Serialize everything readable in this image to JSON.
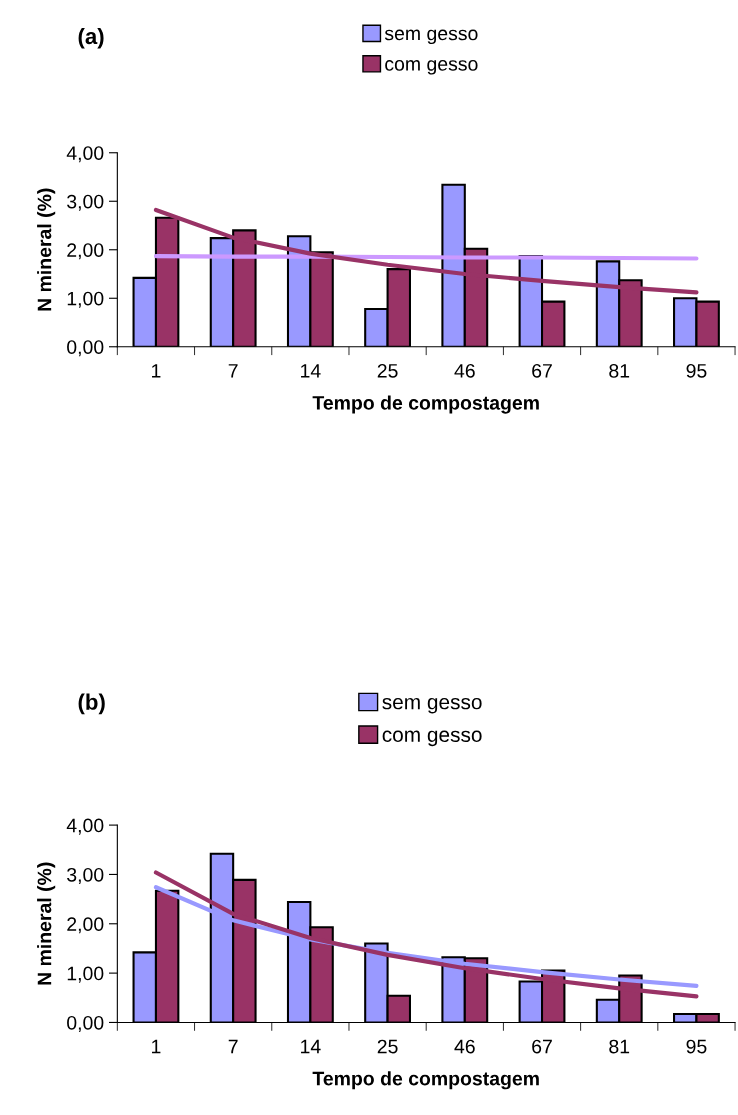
{
  "chart_data": [
    {
      "type": "bar",
      "title": "(a)",
      "xlabel": "Tempo de compostagem",
      "ylabel": "N mineral (%)",
      "categories": [
        "1",
        "7",
        "14",
        "25",
        "46",
        "67",
        "81",
        "95"
      ],
      "series": [
        {
          "name": "sem gesso",
          "type": "bar",
          "color": "#9999ff",
          "values": [
            1.42,
            2.24,
            2.28,
            0.78,
            3.34,
            1.87,
            1.76,
            1.0
          ]
        },
        {
          "name": "com gesso",
          "type": "bar",
          "color": "#993366",
          "values": [
            2.66,
            2.4,
            1.95,
            1.6,
            2.02,
            0.93,
            1.37,
            0.93
          ]
        },
        {
          "type": "line",
          "color": "#cc99ff",
          "values": [
            1.87,
            1.86,
            1.86,
            1.85,
            1.84,
            1.84,
            1.83,
            1.82
          ]
        },
        {
          "type": "line",
          "color": "#993366",
          "values": [
            2.82,
            2.25,
            1.92,
            1.69,
            1.5,
            1.36,
            1.23,
            1.12
          ]
        }
      ],
      "ylim": [
        0,
        4
      ],
      "yticks": [
        {
          "value": 0,
          "label": "0,00"
        },
        {
          "value": 1,
          "label": "1,00"
        },
        {
          "value": 2,
          "label": "2,00"
        },
        {
          "value": 3,
          "label": "3,00"
        },
        {
          "value": 4,
          "label": "4,00"
        }
      ],
      "grid": false,
      "legend": "top"
    },
    {
      "type": "bar",
      "title": "(b)",
      "xlabel": "Tempo de compostagem",
      "ylabel": "N mineral (%)",
      "categories": [
        "1",
        "7",
        "14",
        "25",
        "46",
        "67",
        "81",
        "95"
      ],
      "series": [
        {
          "name": "sem gesso",
          "type": "bar",
          "color": "#9999ff",
          "values": [
            1.42,
            3.42,
            2.44,
            1.6,
            1.32,
            0.83,
            0.46,
            0.17
          ]
        },
        {
          "name": "com gesso",
          "type": "bar",
          "color": "#993366",
          "values": [
            2.67,
            2.89,
            1.93,
            0.54,
            1.3,
            1.05,
            0.95,
            0.17
          ]
        },
        {
          "type": "line",
          "color": "#9999ff",
          "values": [
            2.74,
            2.07,
            1.68,
            1.41,
            1.19,
            1.02,
            0.87,
            0.74
          ]
        },
        {
          "type": "line",
          "color": "#993366",
          "values": [
            3.04,
            2.2,
            1.71,
            1.37,
            1.1,
            0.88,
            0.69,
            0.53
          ]
        }
      ],
      "ylim": [
        0,
        4
      ],
      "yticks": [
        {
          "value": 0,
          "label": "0,00"
        },
        {
          "value": 1,
          "label": "1,00"
        },
        {
          "value": 2,
          "label": "2,00"
        },
        {
          "value": 3,
          "label": "3,00"
        },
        {
          "value": 4,
          "label": "4,00"
        }
      ],
      "grid": false,
      "legend": "top"
    }
  ]
}
